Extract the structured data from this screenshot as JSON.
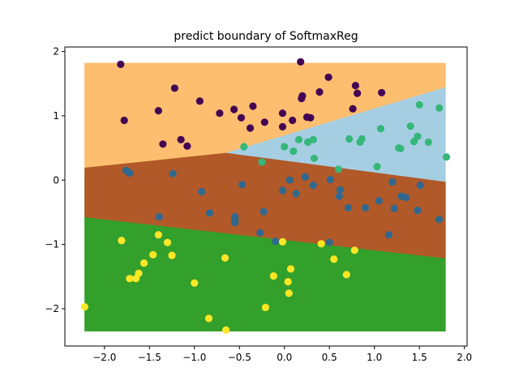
{
  "chart_data": {
    "type": "scatter",
    "title": "predict boundary of SoftmaxReg",
    "xlabel": "",
    "ylabel": "",
    "xlim": [
      -2.44,
      2.03
    ],
    "ylim": [
      -2.58,
      2.07
    ],
    "xticks": [
      -2.0,
      -1.5,
      -1.0,
      -0.5,
      0.0,
      0.5,
      1.0,
      1.5,
      2.0
    ],
    "xtick_labels": [
      "−2.0",
      "−1.5",
      "−1.0",
      "−0.5",
      "0.0",
      "0.5",
      "1.0",
      "1.5",
      "2.0"
    ],
    "yticks": [
      -2,
      -1,
      0,
      1,
      2
    ],
    "ytick_labels": [
      "−2",
      "−1",
      "0",
      "1",
      "2"
    ],
    "grid": false,
    "region_extent": {
      "x": [
        -2.22,
        1.79
      ],
      "y": [
        -2.35,
        1.82
      ]
    },
    "regions": [
      {
        "class": 0,
        "color": "#fdbf6f"
      },
      {
        "class": 1,
        "color": "#a6cee3"
      },
      {
        "class": 2,
        "color": "#b15928"
      },
      {
        "class": 3,
        "color": "#33a02c"
      }
    ],
    "boundaries": [
      {
        "between": [
          0,
          1
        ],
        "points": [
          [
            -0.65,
            0.42
          ],
          [
            1.79,
            1.44
          ]
        ]
      },
      {
        "between": [
          0,
          2
        ],
        "points": [
          [
            -2.22,
            0.19
          ],
          [
            -0.65,
            0.42
          ]
        ]
      },
      {
        "between": [
          1,
          2
        ],
        "points": [
          [
            -0.65,
            0.42
          ],
          [
            1.79,
            -0.03
          ]
        ]
      },
      {
        "between": [
          2,
          3
        ],
        "points": [
          [
            -2.22,
            -0.58
          ],
          [
            1.79,
            -1.22
          ]
        ]
      }
    ],
    "series": [
      {
        "class": 0,
        "color": "#440154",
        "points": [
          [
            -1.82,
            1.8
          ],
          [
            -1.78,
            0.93
          ],
          [
            -1.4,
            1.08
          ],
          [
            -1.35,
            0.56
          ],
          [
            -1.22,
            1.43
          ],
          [
            -1.15,
            0.63
          ],
          [
            -1.08,
            0.53
          ],
          [
            -0.94,
            1.23
          ],
          [
            -0.72,
            1.04
          ],
          [
            -0.56,
            1.1
          ],
          [
            -0.48,
            0.97
          ],
          [
            -0.38,
            0.81
          ],
          [
            -0.35,
            1.15
          ],
          [
            -0.22,
            0.9
          ],
          [
            -0.02,
            1.04
          ],
          [
            -0.02,
            0.83
          ],
          [
            0.09,
            0.93
          ],
          [
            0.18,
            1.84
          ],
          [
            0.19,
            1.27
          ],
          [
            0.2,
            1.31
          ],
          [
            0.25,
            0.98
          ],
          [
            0.29,
            0.97
          ],
          [
            0.39,
            1.37
          ],
          [
            0.49,
            1.6
          ],
          [
            0.76,
            1.11
          ],
          [
            0.79,
            1.47
          ],
          [
            0.81,
            1.35
          ],
          [
            1.08,
            1.36
          ]
        ]
      },
      {
        "class": 1,
        "color": "#35b779",
        "points": [
          [
            -0.45,
            0.52
          ],
          [
            -0.25,
            0.28
          ],
          [
            0.0,
            0.52
          ],
          [
            0.1,
            0.45
          ],
          [
            0.16,
            0.63
          ],
          [
            0.26,
            0.59
          ],
          [
            0.32,
            0.63
          ],
          [
            0.33,
            0.34
          ],
          [
            0.6,
            0.17
          ],
          [
            0.72,
            0.64
          ],
          [
            0.84,
            0.59
          ],
          [
            0.86,
            0.64
          ],
          [
            1.03,
            0.21
          ],
          [
            1.07,
            0.8
          ],
          [
            1.27,
            0.5
          ],
          [
            1.29,
            0.49
          ],
          [
            1.4,
            0.84
          ],
          [
            1.44,
            0.6
          ],
          [
            1.48,
            0.68
          ],
          [
            1.5,
            1.17
          ],
          [
            1.6,
            0.59
          ],
          [
            1.72,
            1.12
          ],
          [
            1.8,
            0.36
          ]
        ]
      },
      {
        "class": 2,
        "color": "#31688e",
        "points": [
          [
            -1.76,
            0.15
          ],
          [
            -1.72,
            0.11
          ],
          [
            -1.39,
            -0.57
          ],
          [
            -1.24,
            0.1
          ],
          [
            -0.92,
            -0.18
          ],
          [
            -0.83,
            -0.51
          ],
          [
            -0.55,
            -0.57
          ],
          [
            -0.55,
            -0.62
          ],
          [
            -0.55,
            -0.66
          ],
          [
            -0.47,
            -0.07
          ],
          [
            -0.27,
            -0.82
          ],
          [
            -0.23,
            -0.49
          ],
          [
            -0.1,
            -0.95
          ],
          [
            -0.02,
            -0.16
          ],
          [
            0.06,
            0.0
          ],
          [
            0.13,
            -0.21
          ],
          [
            0.23,
            0.05
          ],
          [
            0.32,
            -0.08
          ],
          [
            0.5,
            -0.97
          ],
          [
            0.51,
            0.01
          ],
          [
            0.61,
            -0.25
          ],
          [
            0.62,
            -0.15
          ],
          [
            0.71,
            -0.43
          ],
          [
            0.9,
            -0.43
          ],
          [
            1.05,
            -0.32
          ],
          [
            1.16,
            -0.85
          ],
          [
            1.2,
            -0.03
          ],
          [
            1.22,
            -0.44
          ],
          [
            1.3,
            -0.25
          ],
          [
            1.35,
            -0.27
          ],
          [
            1.48,
            -0.47
          ],
          [
            1.51,
            -0.08
          ],
          [
            1.72,
            -0.61
          ]
        ]
      },
      {
        "class": 3,
        "color": "#fde725",
        "points": [
          [
            -2.22,
            -1.97
          ],
          [
            -1.81,
            -0.94
          ],
          [
            -1.72,
            -1.53
          ],
          [
            -1.65,
            -1.53
          ],
          [
            -1.62,
            -1.45
          ],
          [
            -1.56,
            -1.29
          ],
          [
            -1.46,
            -1.16
          ],
          [
            -1.4,
            -0.85
          ],
          [
            -1.3,
            -0.97
          ],
          [
            -1.25,
            -1.17
          ],
          [
            -1.0,
            -1.6
          ],
          [
            -0.84,
            -2.15
          ],
          [
            -0.66,
            -1.21
          ],
          [
            -0.65,
            -2.33
          ],
          [
            -0.21,
            -1.98
          ],
          [
            -0.12,
            -1.49
          ],
          [
            -0.02,
            -0.96
          ],
          [
            0.04,
            -1.58
          ],
          [
            0.05,
            -1.76
          ],
          [
            0.07,
            -1.38
          ],
          [
            0.41,
            -0.99
          ],
          [
            0.55,
            -1.23
          ],
          [
            0.69,
            -1.47
          ],
          [
            0.78,
            -1.09
          ]
        ]
      }
    ]
  }
}
